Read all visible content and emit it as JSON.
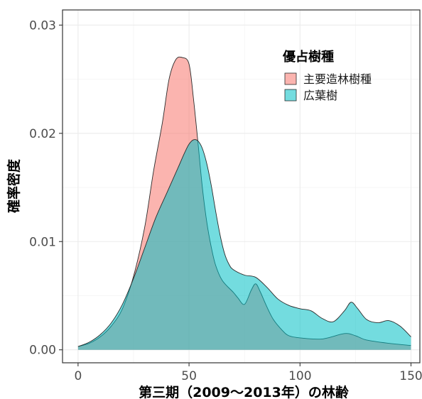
{
  "chart_data": {
    "type": "area",
    "title": "",
    "xlabel": "第三期（2009～2013年）の林齢",
    "ylabel": "確率密度",
    "xlim": [
      -7,
      154
    ],
    "ylim": [
      -0.0012,
      0.0314
    ],
    "x_ticks": [
      0,
      50,
      100,
      150
    ],
    "x_tick_labels": [
      "0",
      "50",
      "100",
      "150"
    ],
    "y_ticks": [
      0,
      0.01,
      0.02,
      0.03
    ],
    "y_tick_labels": [
      "0.00",
      "0.01",
      "0.02",
      "0.03"
    ],
    "grid": true,
    "legend": {
      "title": "優占樹種",
      "placement": "top-right"
    },
    "series": [
      {
        "name": "主要造林樹種",
        "color": "#F8766D",
        "opacity": 0.55,
        "x": [
          0,
          5,
          10,
          15,
          20,
          25,
          30,
          34,
          38,
          41,
          44,
          47,
          50,
          52,
          54,
          56,
          58,
          60,
          62,
          65,
          70,
          72,
          75,
          78,
          80,
          82,
          85,
          88,
          92,
          95,
          100,
          110,
          120,
          125,
          130,
          140,
          150
        ],
        "y": [
          0.0003,
          0.0006,
          0.0012,
          0.0022,
          0.0038,
          0.0068,
          0.0113,
          0.0165,
          0.021,
          0.025,
          0.0268,
          0.027,
          0.0264,
          0.0232,
          0.0192,
          0.015,
          0.0118,
          0.0095,
          0.0078,
          0.0064,
          0.0053,
          0.0048,
          0.0042,
          0.0055,
          0.0061,
          0.0054,
          0.004,
          0.0028,
          0.0018,
          0.0013,
          0.0011,
          0.001,
          0.0015,
          0.0013,
          0.0009,
          0.0006,
          0.0004
        ]
      },
      {
        "name": "広葉樹",
        "color": "#00BFC4",
        "opacity": 0.55,
        "x": [
          0,
          5,
          10,
          15,
          20,
          25,
          30,
          35,
          40,
          45,
          48,
          50,
          52,
          54,
          56,
          58,
          60,
          62,
          64,
          66,
          68,
          70,
          75,
          80,
          85,
          90,
          95,
          100,
          105,
          110,
          115,
          120,
          123,
          126,
          130,
          135,
          140,
          145,
          150
        ],
        "y": [
          0.0003,
          0.0007,
          0.0014,
          0.0025,
          0.0042,
          0.0066,
          0.0094,
          0.0122,
          0.0145,
          0.0168,
          0.0182,
          0.019,
          0.0194,
          0.0193,
          0.0186,
          0.0172,
          0.0152,
          0.0128,
          0.0106,
          0.0089,
          0.0079,
          0.0074,
          0.0069,
          0.0067,
          0.0058,
          0.0047,
          0.0041,
          0.0038,
          0.0036,
          0.0029,
          0.0026,
          0.0036,
          0.0044,
          0.0038,
          0.0028,
          0.0025,
          0.0027,
          0.0022,
          0.0012
        ]
      }
    ]
  }
}
